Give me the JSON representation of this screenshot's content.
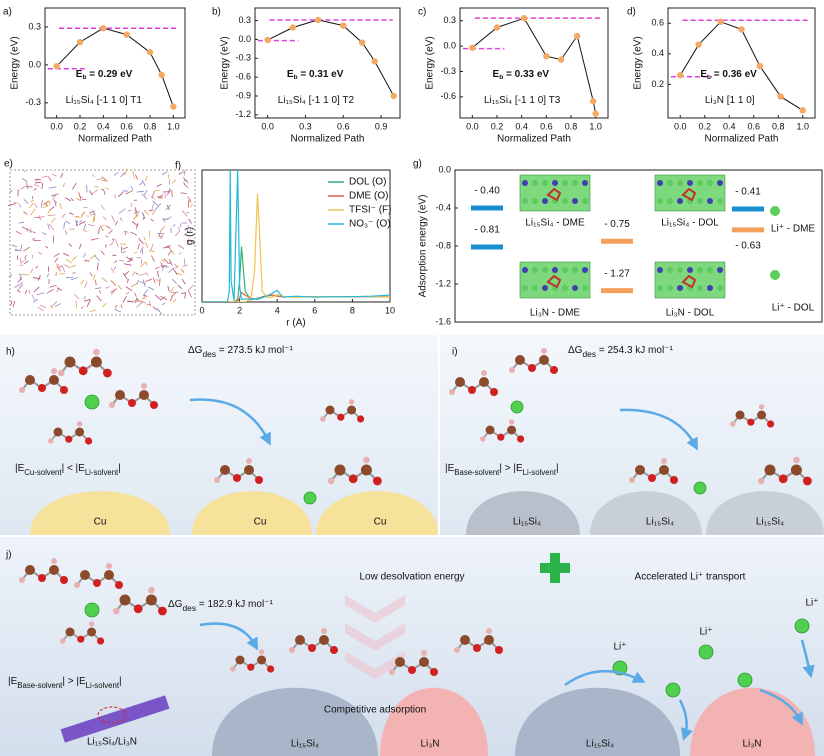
{
  "chart_data": [
    {
      "type": "line",
      "label": "a)",
      "title": "Li₁₅Si₄ [-1 1 0]  T1",
      "annotation": [
        "E",
        "b",
        " = 0.29 eV"
      ],
      "xlabel": "Normalized Path",
      "ylabel": "Energy (eV)",
      "x": [
        0,
        0.2,
        0.4,
        0.6,
        0.8,
        0.9,
        1.0
      ],
      "values": [
        -0.01,
        0.18,
        0.29,
        0.24,
        0.1,
        -0.08,
        -0.33
      ],
      "color": "#111111",
      "marker_color": "#f5a862",
      "reference_lines": [
        0.29,
        -0.03
      ],
      "reference_color": "#e040e0",
      "xlim": [
        -0.1,
        1.1
      ],
      "ylim": [
        -0.42,
        0.45
      ],
      "xticks": [
        {
          "value": 0,
          "label": "0.0"
        },
        0.2,
        0.4,
        0.6,
        0.8,
        {
          "value": 1,
          "label": "1.0"
        }
      ],
      "yticks": [
        -0.3,
        {
          "value": 0,
          "label": "0.0"
        },
        0.3
      ]
    },
    {
      "type": "line",
      "label": "b)",
      "title": "Li₁₅Si₄ [-1 1 0]  T2",
      "annotation": [
        "E",
        "b",
        " = 0.31 eV"
      ],
      "xlabel": "Normalized Path",
      "ylabel": "Energy (eV)",
      "x": [
        0,
        0.2,
        0.4,
        0.6,
        0.75,
        0.85,
        1.0
      ],
      "values": [
        -0.01,
        0.19,
        0.31,
        0.22,
        -0.05,
        -0.35,
        -0.9
      ],
      "color": "#111111",
      "marker_color": "#f5a862",
      "reference_lines": [
        0.31,
        -0.02
      ],
      "reference_color": "#e040e0",
      "xlim": [
        -0.1,
        1.05
      ],
      "ylim": [
        -1.25,
        0.5
      ],
      "xticks": [
        {
          "value": 0,
          "label": "0.0"
        },
        0.3,
        0.6,
        0.9
      ],
      "yticks": [
        -1.2,
        -0.9,
        -0.6,
        -0.3,
        {
          "value": 0,
          "label": "0.0"
        },
        0.3
      ]
    },
    {
      "type": "line",
      "label": "c)",
      "title": "Li₁₅Si₄ [-1 1 0]  T3",
      "annotation": [
        "E",
        "b",
        " = 0.33 eV"
      ],
      "xlabel": "Normalized Path",
      "ylabel": "Energy (eV)",
      "x": [
        0,
        0.2,
        0.42,
        0.6,
        0.72,
        0.85,
        0.98,
        1.0
      ],
      "values": [
        -0.02,
        0.22,
        0.33,
        -0.12,
        -0.16,
        0.12,
        -0.65,
        -0.8
      ],
      "color": "#111111",
      "marker_color": "#f5a862",
      "reference_lines": [
        0.33,
        -0.03
      ],
      "reference_color": "#e040e0",
      "xlim": [
        -0.1,
        1.1
      ],
      "ylim": [
        -0.85,
        0.45
      ],
      "xticks": [
        {
          "value": 0,
          "label": "0.0"
        },
        0.2,
        0.4,
        0.6,
        0.8,
        {
          "value": 1,
          "label": "1.0"
        }
      ],
      "yticks": [
        -0.6,
        -0.3,
        {
          "value": 0,
          "label": "0.0"
        },
        0.3
      ]
    },
    {
      "type": "line",
      "label": "d)",
      "title": "Li₃N  [1 1 0]",
      "annotation": [
        "E",
        "b",
        " = 0.36 eV"
      ],
      "xlabel": "Normalized Path",
      "ylabel": "Energy (eV)",
      "x": [
        0,
        0.15,
        0.33,
        0.5,
        0.65,
        0.82,
        1.0
      ],
      "values": [
        0.26,
        0.46,
        0.61,
        0.56,
        0.32,
        0.12,
        0.03
      ],
      "color": "#111111",
      "marker_color": "#f5a862",
      "reference_lines": [
        0.62,
        0.25
      ],
      "reference_color": "#e040e0",
      "xlim": [
        -0.1,
        1.1
      ],
      "ylim": [
        -0.02,
        0.7
      ],
      "xticks": [
        {
          "value": 0,
          "label": "0.0"
        },
        0.2,
        0.4,
        0.6,
        0.8,
        {
          "value": 1,
          "label": "1.0"
        }
      ],
      "yticks": [
        0.2,
        0.4,
        0.6
      ]
    },
    {
      "type": "line",
      "label": "f)",
      "xlabel": "r (A)",
      "ylabel": "g (r)",
      "x": [
        0,
        1.2,
        1.35,
        1.45,
        1.5,
        1.55,
        1.7,
        1.9,
        2.0,
        2.1,
        2.3,
        2.6,
        2.8,
        2.95,
        3.05,
        3.2,
        3.5,
        3.8,
        4.0,
        4.3,
        5,
        6,
        7,
        8,
        9,
        10
      ],
      "series": [
        {
          "name": "DOL (O)",
          "color": "#2bb673",
          "values": [
            0,
            0,
            0,
            0,
            0,
            0,
            0,
            0.5,
            4,
            10.5,
            2,
            0.4,
            0.6,
            0.5,
            0.7,
            1,
            1.2,
            1.3,
            1.1,
            1.0,
            1.0,
            1.0,
            1.0,
            1.0,
            1.0,
            1.0
          ]
        },
        {
          "name": "DME (O)",
          "color": "#e8604c",
          "values": [
            0,
            0,
            0,
            0,
            0,
            0,
            0,
            0.2,
            0.8,
            1.8,
            1.3,
            0.7,
            0.6,
            0.7,
            0.8,
            0.9,
            1.2,
            1.3,
            1.1,
            1.0,
            1.0,
            1.0,
            1.0,
            1.0,
            1.0,
            1.0
          ]
        },
        {
          "name": "TFSI⁻ (F)",
          "color": "#f2c14e",
          "values": [
            0,
            0,
            0,
            0,
            0,
            0,
            0,
            0,
            0,
            0,
            0,
            0.5,
            6,
            20.5,
            14,
            2,
            0.8,
            1.0,
            1.4,
            1.1,
            0.9,
            1.0,
            1.0,
            1.0,
            1.0,
            1.0
          ]
        },
        {
          "name": "NO₃⁻ (O)",
          "color": "#22b8d8",
          "values": [
            0,
            0,
            0,
            2,
            25,
            4,
            0.3,
            25,
            3,
            0.5,
            0.6,
            0.5,
            0.6,
            0.7,
            0.6,
            0.8,
            1.2,
            1.8,
            2.2,
            0.9,
            1.1,
            0.9,
            1.0,
            1.0,
            1.1,
            1.3
          ]
        }
      ],
      "xlim": [
        0,
        10
      ],
      "ylim": [
        0,
        25
      ],
      "xticks": [
        0,
        2,
        4,
        6,
        8,
        10
      ],
      "legend": "upper right"
    },
    {
      "type": "scatter",
      "label": "g)",
      "ylabel": "Adsorption energy (eV)",
      "categories": [
        "Li₁₅Si₄ - DME",
        "Li₃N - DME",
        "Li₁₅Si₄ - DOL",
        "Li₃N - DOL",
        "Li⁺ - DME",
        "Li⁺ - DOL"
      ],
      "values": [
        -0.4,
        -0.81,
        -0.75,
        -1.27,
        -0.41,
        -0.63
      ],
      "value_labels": [
        "- 0.40",
        "- 0.81",
        "- 0.75",
        "- 1.27",
        "- 0.41",
        "- 0.63"
      ],
      "colors": [
        "#1a8fd0",
        "#1a8fd0",
        "#f5a05a",
        "#f5a05a",
        "#1a8fd0",
        "#f5a05a"
      ],
      "ylim": [
        -1.6,
        0
      ],
      "yticks": [
        {
          "value": 0,
          "label": "0.0"
        },
        -0.4,
        -0.8,
        -1.2,
        -1.6
      ]
    }
  ],
  "panel_e": {
    "label": "e)"
  },
  "schematic_h": {
    "label": "h)",
    "delta_g": [
      "ΔG",
      "des",
      " = 273.5 kJ mol⁻¹"
    ],
    "inequality": [
      "|E",
      "Cu-solvent",
      "| < |E",
      "Li-solvent",
      "|"
    ],
    "substrates": [
      "Cu",
      "Cu",
      "Cu"
    ]
  },
  "schematic_i": {
    "label": "i)",
    "delta_g": [
      "ΔG",
      "des",
      " = 254.3 kJ mol⁻¹"
    ],
    "inequality": [
      "|E",
      "Base-solvent",
      "| > |E",
      "Li-solvent",
      "|"
    ],
    "substrates": [
      "Li₁₅Si₄",
      "Li₁₅Si₄",
      "Li₁₅Si₄"
    ]
  },
  "schematic_j": {
    "label": "j)",
    "delta_g": [
      "ΔG",
      "des",
      " = 182.9 kJ mol⁻¹"
    ],
    "inequality": [
      "|E",
      "Base-solvent",
      "| > |E",
      "Li-solvent",
      "|"
    ],
    "headline_left": "Low desolvation energy",
    "headline_right": "Accelerated Li⁺ transport",
    "caption": "Competitive adsorption",
    "substrates": [
      "Li₁₅Si₄",
      "Li₃N",
      "Li₁₅Si₄",
      "Li₃N"
    ],
    "ion_labels": [
      "Li⁺",
      "Li⁺",
      "Li⁺"
    ],
    "composite": "Li₁₅Si₄/Li₃N"
  }
}
